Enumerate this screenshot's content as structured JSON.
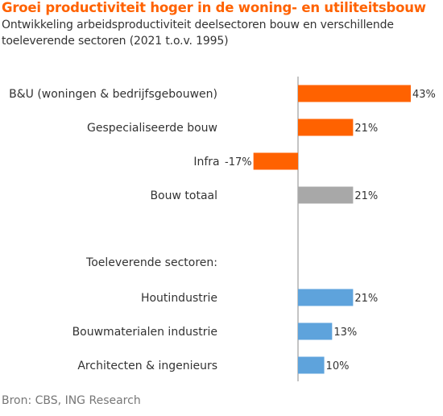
{
  "chart_data": {
    "type": "bar",
    "orientation": "horizontal",
    "title": "Groei productiviteit hoger in de woning- en utiliteitsbouw",
    "subtitle": "Ontwikkeling arbeidsproductiviteit deelsectoren bouw en verschillende toeleverende sectoren (2021 t.o.v. 1995)",
    "rows": [
      {
        "category": "B&U (woningen & bedrijfsgebouwen)",
        "value": 43,
        "label": "43%",
        "color": "#ff6200"
      },
      {
        "category": "Gespecialiseerde bouw",
        "value": 21,
        "label": "21%",
        "color": "#ff6200"
      },
      {
        "category": "Infra",
        "value": -17,
        "label": "-17%",
        "color": "#ff6200"
      },
      {
        "category": "Bouw totaal",
        "value": 21,
        "label": "21%",
        "color": "#a8a8a8"
      },
      {
        "category": "Toeleverende sectoren:",
        "value": null,
        "label": "",
        "color": ""
      },
      {
        "category": "Houtindustrie",
        "value": 21,
        "label": "21%",
        "color": "#5ea3dc"
      },
      {
        "category": "Bouwmaterialen industrie",
        "value": 13,
        "label": "13%",
        "color": "#5ea3dc"
      },
      {
        "category": "Architecten & ingenieurs",
        "value": 10,
        "label": "10%",
        "color": "#5ea3dc"
      }
    ],
    "xlim": [
      -17,
      43
    ],
    "grid": false,
    "legend": "none"
  },
  "source": "Bron: CBS, ING Research",
  "colors": {
    "title": "#ff6200",
    "axis": "#b0b0b0"
  }
}
